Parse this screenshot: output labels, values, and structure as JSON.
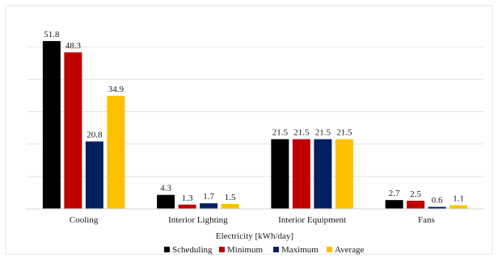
{
  "chart_data": {
    "type": "bar",
    "categories": [
      "Cooling",
      "Interior Lighting",
      "Interior Equipment",
      "Fans"
    ],
    "series": [
      {
        "name": "Scheduling",
        "color": "#000000",
        "values": [
          51.8,
          4.3,
          21.5,
          2.7
        ]
      },
      {
        "name": "Minimum",
        "color": "#c00000",
        "values": [
          48.3,
          1.3,
          21.5,
          2.5
        ]
      },
      {
        "name": "Maximum",
        "color": "#002060",
        "values": [
          20.8,
          1.7,
          21.5,
          0.6
        ]
      },
      {
        "name": "Average",
        "color": "#ffc000",
        "values": [
          34.9,
          1.5,
          21.5,
          1.1
        ]
      }
    ],
    "title": "",
    "xlabel": "Electricity [kWh/day]",
    "ylabel": "",
    "ylim": [
      0,
      60
    ],
    "grid": true,
    "legend": "bottom",
    "data_labels": true
  }
}
